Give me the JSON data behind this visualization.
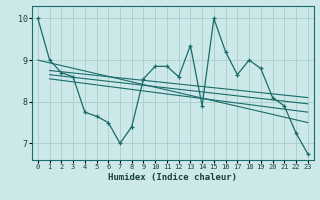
{
  "xlabel": "Humidex (Indice chaleur)",
  "xlim": [
    -0.5,
    23.5
  ],
  "ylim": [
    6.6,
    10.3
  ],
  "yticks": [
    7,
    8,
    9,
    10
  ],
  "xticks": [
    0,
    1,
    2,
    3,
    4,
    5,
    6,
    7,
    8,
    9,
    10,
    11,
    12,
    13,
    14,
    15,
    16,
    17,
    18,
    19,
    20,
    21,
    22,
    23
  ],
  "bg_color": "#cce8e8",
  "grid_color": "#aacccc",
  "line_color": "#1a6b6b",
  "jagged_x": [
    0,
    1,
    2,
    3,
    4,
    5,
    6,
    7,
    8,
    9,
    10,
    11,
    12,
    13,
    14,
    15,
    16,
    17,
    18,
    19,
    20,
    21,
    22,
    23
  ],
  "jagged_y": [
    10.0,
    9.0,
    8.7,
    8.6,
    7.75,
    7.65,
    7.5,
    7.0,
    7.4,
    8.55,
    8.85,
    8.85,
    8.6,
    9.35,
    7.9,
    10.0,
    9.2,
    8.65,
    9.0,
    8.8,
    8.1,
    7.9,
    7.25,
    6.75
  ],
  "trend1_x": [
    0,
    23
  ],
  "trend1_y": [
    9.0,
    7.5
  ],
  "trend2_x": [
    1,
    23
  ],
  "trend2_y": [
    8.75,
    8.1
  ],
  "trend3_x": [
    1,
    23
  ],
  "trend3_y": [
    8.65,
    7.95
  ],
  "trend4_x": [
    1,
    23
  ],
  "trend4_y": [
    8.55,
    7.75
  ]
}
